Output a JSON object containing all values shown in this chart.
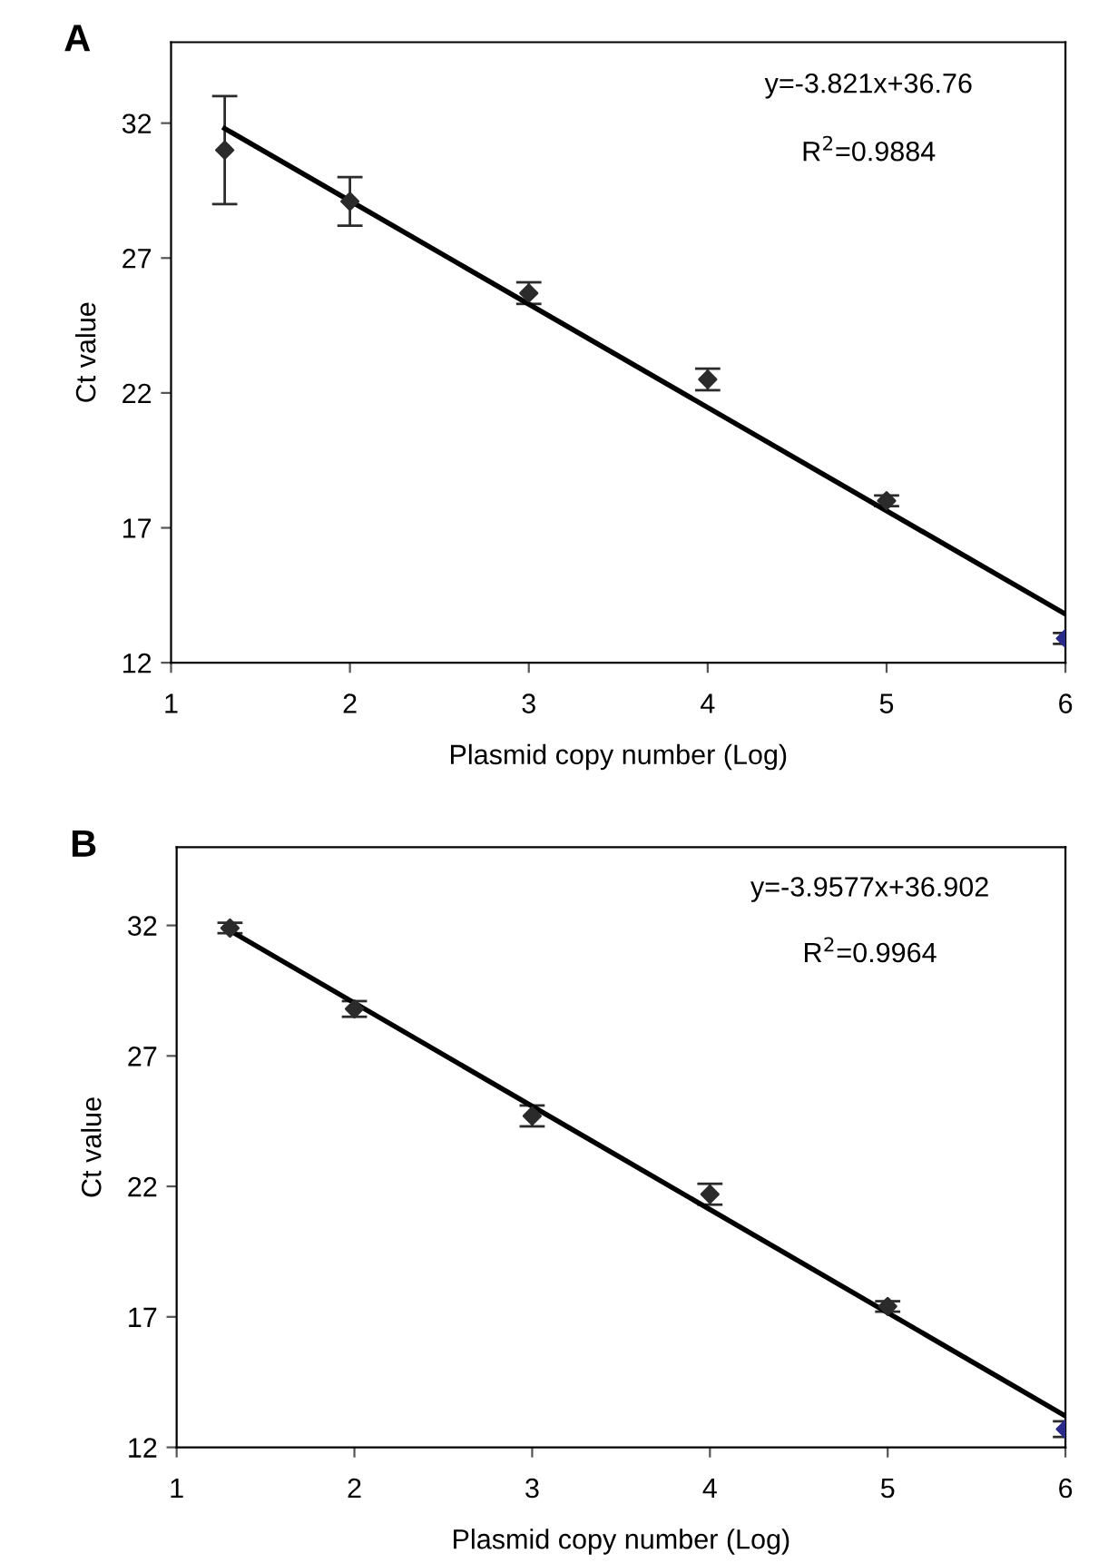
{
  "chart_data": [
    {
      "type": "scatter",
      "title": "A",
      "xlabel": "Plasmid copy number (Log)",
      "ylabel": "Ct value",
      "xlim": [
        1,
        6
      ],
      "xticks": [
        1,
        2,
        3,
        4,
        5,
        6
      ],
      "ylim": [
        12,
        35
      ],
      "yticks": [
        12,
        17,
        22,
        27,
        32
      ],
      "grid": false,
      "legend": false,
      "annotations": [
        "y=-3.821x+36.76",
        "R$^{2}$=0.9884"
      ],
      "series": [
        {
          "marker": "diamond",
          "x": [
            1.3,
            2,
            3,
            4,
            5,
            6
          ],
          "values": [
            31.0,
            29.1,
            25.7,
            22.5,
            18.0,
            12.9
          ],
          "errors": [
            2.0,
            0.9,
            0.4,
            0.4,
            0.2,
            0.2
          ],
          "color": "#2b2b2b",
          "colors": [
            "#2b2b2b",
            "#2b2b2b",
            "#2b2b2b",
            "#2b2b2b",
            "#2b2b2b",
            "#2a2a8a"
          ]
        },
        {
          "type": "line",
          "x": [
            1.3,
            6
          ],
          "values": [
            31.8,
            13.8
          ],
          "color": "#000000",
          "line_style": "solid"
        }
      ]
    },
    {
      "type": "scatter",
      "title": "B",
      "xlabel": "Plasmid copy number (Log)",
      "ylabel": "Ct value",
      "xlim": [
        1,
        6
      ],
      "xticks": [
        1,
        2,
        3,
        4,
        5,
        6
      ],
      "ylim": [
        12,
        35
      ],
      "yticks": [
        12,
        17,
        22,
        27,
        32
      ],
      "grid": false,
      "legend": false,
      "annotations": [
        "y=-3.9577x+36.902",
        "R$^{2}$=0.9964"
      ],
      "series": [
        {
          "marker": "diamond",
          "x": [
            1.3,
            2,
            3,
            4,
            5,
            6
          ],
          "values": [
            31.9,
            28.8,
            24.7,
            21.7,
            17.4,
            12.7
          ],
          "errors": [
            0.2,
            0.3,
            0.4,
            0.4,
            0.2,
            0.3
          ],
          "color": "#2b2b2b",
          "colors": [
            "#2b2b2b",
            "#2b2b2b",
            "#2b2b2b",
            "#2b2b2b",
            "#2b2b2b",
            "#2a2a8a"
          ]
        },
        {
          "type": "line",
          "x": [
            1.3,
            6
          ],
          "values": [
            31.8,
            13.2
          ],
          "color": "#000000",
          "line_style": "solid"
        }
      ]
    }
  ]
}
